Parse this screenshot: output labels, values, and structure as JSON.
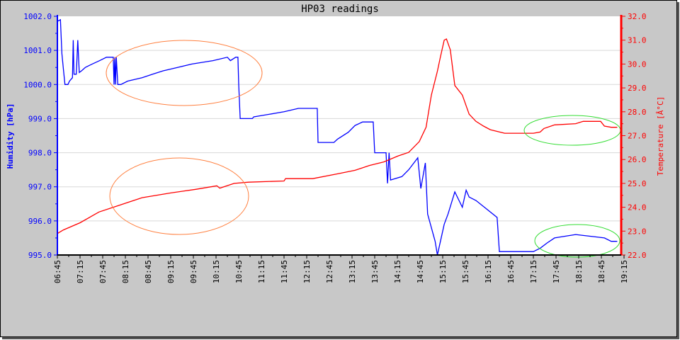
{
  "chart_data": {
    "type": "line",
    "title": "HP03 readings",
    "ylabel": "Humidity [hPa]",
    "y2label": "Temperature [Â°C]",
    "xlabel": "",
    "ylim": [
      995.0,
      1002.0
    ],
    "y2lim": [
      22.0,
      32.0
    ],
    "xlim": [
      "06:45",
      "19:15"
    ],
    "grid": true,
    "colors": {
      "pressure": "#0000ff",
      "temperature": "#ff0000",
      "annotation_orange": "#ff8040",
      "annotation_green": "#33dd33",
      "background": "#c8c8c8",
      "plot": "#ffffff",
      "grid": "#d8d8d8"
    },
    "y_ticks": [
      "995.0",
      "996.0",
      "997.0",
      "998.0",
      "999.0",
      "1000.0",
      "1001.0",
      "1002.0"
    ],
    "y2_ticks": [
      "22.0",
      "23.0",
      "24.0",
      "25.0",
      "26.0",
      "27.0",
      "28.0",
      "29.0",
      "30.0",
      "31.0",
      "32.0"
    ],
    "x_ticks": [
      "06:45",
      "07:15",
      "07:45",
      "08:15",
      "08:45",
      "09:15",
      "09:45",
      "10:15",
      "10:45",
      "11:15",
      "11:45",
      "12:15",
      "12:45",
      "13:15",
      "13:45",
      "14:15",
      "14:45",
      "15:15",
      "15:45",
      "16:15",
      "16:45",
      "17:15",
      "17:45",
      "18:15",
      "18:45",
      "19:15"
    ],
    "series": [
      {
        "axis": "left",
        "points": [
          [
            "06:45",
            1001.85
          ],
          [
            "06:49",
            1001.9
          ],
          [
            "06:51",
            1000.9
          ],
          [
            "06:53",
            1000.45
          ],
          [
            "06:55",
            1000.0
          ],
          [
            "06:59",
            1000.0
          ],
          [
            "07:01",
            1000.1
          ],
          [
            "07:05",
            1000.2
          ],
          [
            "07:06",
            1001.3
          ],
          [
            "07:07",
            1000.3
          ],
          [
            "07:10",
            1000.3
          ],
          [
            "07:12",
            1001.3
          ],
          [
            "07:14",
            1000.35
          ],
          [
            "07:17",
            1000.4
          ],
          [
            "07:22",
            1000.5
          ],
          [
            "07:31",
            1000.6
          ],
          [
            "07:41",
            1000.7
          ],
          [
            "07:50",
            1000.8
          ],
          [
            "07:59",
            1000.8
          ],
          [
            "08:00",
            1000.0
          ],
          [
            "08:01",
            1000.8
          ],
          [
            "08:02",
            1000.0
          ],
          [
            "08:03",
            1000.8
          ],
          [
            "08:05",
            1000.0
          ],
          [
            "08:09",
            1000.0
          ],
          [
            "08:18",
            1000.1
          ],
          [
            "08:37",
            1000.2
          ],
          [
            "08:51",
            1000.3
          ],
          [
            "09:05",
            1000.4
          ],
          [
            "09:24",
            1000.5
          ],
          [
            "09:43",
            1000.6
          ],
          [
            "10:11",
            1000.7
          ],
          [
            "10:30",
            1000.8
          ],
          [
            "10:34",
            1000.7
          ],
          [
            "10:41",
            1000.8
          ],
          [
            "10:44",
            1000.8
          ],
          [
            "10:45",
            1000.0
          ],
          [
            "10:47",
            999.0
          ],
          [
            "11:03",
            999.0
          ],
          [
            "11:05",
            999.05
          ],
          [
            "11:45",
            999.2
          ],
          [
            "12:04",
            999.3
          ],
          [
            "12:29",
            999.3
          ],
          [
            "12:30",
            998.3
          ],
          [
            "12:51",
            998.3
          ],
          [
            "12:56",
            998.4
          ],
          [
            "13:10",
            998.6
          ],
          [
            "13:19",
            998.8
          ],
          [
            "13:29",
            998.9
          ],
          [
            "13:43",
            998.9
          ],
          [
            "13:45",
            998.0
          ],
          [
            "14:00",
            998.0
          ],
          [
            "14:02",
            997.1
          ],
          [
            "14:04",
            998.0
          ],
          [
            "14:06",
            997.2
          ],
          [
            "14:21",
            997.3
          ],
          [
            "14:30",
            997.5
          ],
          [
            "14:42",
            997.85
          ],
          [
            "14:46",
            996.95
          ],
          [
            "14:52",
            997.7
          ],
          [
            "14:55",
            996.2
          ],
          [
            "15:05",
            995.4
          ],
          [
            "15:08",
            995.0
          ],
          [
            "15:12",
            995.4
          ],
          [
            "15:17",
            995.9
          ],
          [
            "15:22",
            996.2
          ],
          [
            "15:31",
            996.85
          ],
          [
            "15:41",
            996.4
          ],
          [
            "15:46",
            996.9
          ],
          [
            "15:50",
            996.7
          ],
          [
            "15:59",
            996.6
          ],
          [
            "16:13",
            996.35
          ],
          [
            "16:27",
            996.1
          ],
          [
            "16:30",
            995.1
          ],
          [
            "17:15",
            995.1
          ],
          [
            "17:24",
            995.2
          ],
          [
            "17:33",
            995.35
          ],
          [
            "17:43",
            995.5
          ],
          [
            "18:11",
            995.6
          ],
          [
            "18:49",
            995.5
          ],
          [
            "18:58",
            995.4
          ],
          [
            "19:06",
            995.4
          ]
        ]
      },
      {
        "axis": "right",
        "points": [
          [
            "06:45",
            22.9
          ],
          [
            "06:53",
            23.05
          ],
          [
            "07:15",
            23.35
          ],
          [
            "07:40",
            23.8
          ],
          [
            "07:59",
            24.0
          ],
          [
            "08:18",
            24.2
          ],
          [
            "08:37",
            24.4
          ],
          [
            "09:15",
            24.6
          ],
          [
            "09:48",
            24.75
          ],
          [
            "10:16",
            24.9
          ],
          [
            "10:20",
            24.8
          ],
          [
            "10:39",
            25.0
          ],
          [
            "10:58",
            25.05
          ],
          [
            "11:45",
            25.1
          ],
          [
            "11:47",
            25.2
          ],
          [
            "12:23",
            25.2
          ],
          [
            "12:56",
            25.4
          ],
          [
            "13:19",
            25.55
          ],
          [
            "13:38",
            25.75
          ],
          [
            "13:57",
            25.9
          ],
          [
            "14:16",
            26.15
          ],
          [
            "14:30",
            26.3
          ],
          [
            "14:44",
            26.75
          ],
          [
            "14:53",
            27.35
          ],
          [
            "15:00",
            28.7
          ],
          [
            "15:08",
            29.7
          ],
          [
            "15:12",
            30.3
          ],
          [
            "15:17",
            31.0
          ],
          [
            "15:20",
            31.05
          ],
          [
            "15:25",
            30.6
          ],
          [
            "15:31",
            29.1
          ],
          [
            "15:41",
            28.7
          ],
          [
            "15:50",
            27.9
          ],
          [
            "15:59",
            27.6
          ],
          [
            "16:09",
            27.4
          ],
          [
            "16:18",
            27.25
          ],
          [
            "16:37",
            27.1
          ],
          [
            "16:56",
            27.1
          ],
          [
            "17:15",
            27.1
          ],
          [
            "17:24",
            27.15
          ],
          [
            "17:29",
            27.3
          ],
          [
            "17:43",
            27.45
          ],
          [
            "18:11",
            27.5
          ],
          [
            "18:21",
            27.6
          ],
          [
            "18:44",
            27.6
          ],
          [
            "18:49",
            27.4
          ],
          [
            "18:58",
            27.35
          ],
          [
            "19:06",
            27.35
          ]
        ]
      }
    ]
  }
}
